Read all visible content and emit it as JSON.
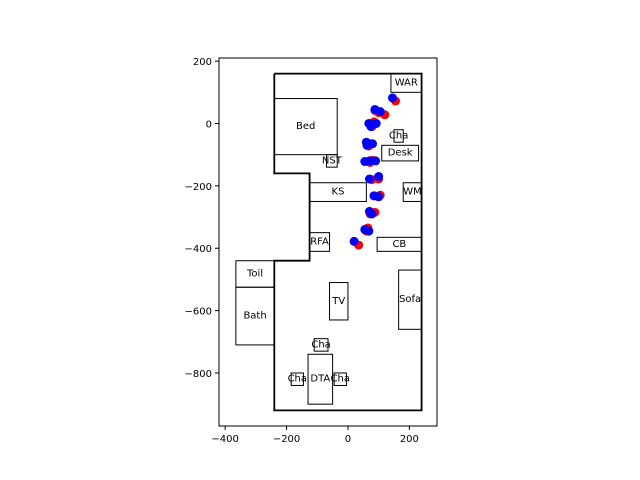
{
  "chart_data": {
    "type": "scatter",
    "title": "",
    "xlabel": "",
    "ylabel": "",
    "xlim": [
      -420,
      290
    ],
    "ylim": [
      -970,
      210
    ],
    "x_ticks": [
      -400,
      -200,
      0,
      200
    ],
    "y_ticks": [
      200,
      0,
      -200,
      -400,
      -600,
      -800
    ],
    "x_tick_labels": [
      "−400",
      "−200",
      "0",
      "200"
    ],
    "y_tick_labels": [
      "200",
      "0",
      "−200",
      "−400",
      "−600",
      "−800"
    ],
    "grid": false,
    "legend": "none",
    "floor_outline": [
      [
        -240,
        160
      ],
      [
        240,
        160
      ],
      [
        240,
        -920
      ],
      [
        -240,
        -920
      ],
      [
        -240,
        -440
      ],
      [
        -125,
        -440
      ],
      [
        -125,
        -160
      ],
      [
        -240,
        -160
      ],
      [
        -240,
        160
      ]
    ],
    "rooms": [
      {
        "label": "WAR",
        "x0": 140,
        "y0": 100,
        "x1": 240,
        "y1": 160
      },
      {
        "label": "Bed",
        "x0": -240,
        "y0": -100,
        "x1": -35,
        "y1": 80
      },
      {
        "label": "Cha",
        "x0": 150,
        "y0": -60,
        "x1": 180,
        "y1": -20
      },
      {
        "label": "Desk",
        "x0": 110,
        "y0": -120,
        "x1": 230,
        "y1": -70
      },
      {
        "label": "NST",
        "x0": -70,
        "y0": -140,
        "x1": -35,
        "y1": -100
      },
      {
        "label": "KS",
        "x0": -125,
        "y0": -250,
        "x1": 60,
        "y1": -190
      },
      {
        "label": "WM",
        "x0": 180,
        "y0": -250,
        "x1": 240,
        "y1": -190
      },
      {
        "label": "RFA",
        "x0": -125,
        "y0": -410,
        "x1": -60,
        "y1": -350
      },
      {
        "label": "CB",
        "x0": 95,
        "y0": -410,
        "x1": 240,
        "y1": -365
      },
      {
        "label": "Toil",
        "x0": -365,
        "y0": -525,
        "x1": -240,
        "y1": -440
      },
      {
        "label": "Bath",
        "x0": -365,
        "y0": -710,
        "x1": -240,
        "y1": -525
      },
      {
        "label": "TV",
        "x0": -60,
        "y0": -630,
        "x1": 0,
        "y1": -510
      },
      {
        "label": "Sofa",
        "x0": 165,
        "y0": -660,
        "x1": 240,
        "y1": -470
      },
      {
        "label": "Cha",
        "x0": -110,
        "y0": -730,
        "x1": -65,
        "y1": -690
      },
      {
        "label": "Cha",
        "x0": -185,
        "y0": -840,
        "x1": -145,
        "y1": -800
      },
      {
        "label": "DTA",
        "x0": -130,
        "y0": -900,
        "x1": -50,
        "y1": -740
      },
      {
        "label": "Cha",
        "x0": -45,
        "y0": -840,
        "x1": -5,
        "y1": -800
      }
    ],
    "series": [
      {
        "color": "#ff0000",
        "points": [
          [
            155,
            72
          ],
          [
            120,
            28
          ],
          [
            100,
            35
          ],
          [
            88,
            42
          ],
          [
            85,
            5
          ],
          [
            80,
            -5
          ],
          [
            78,
            -10
          ],
          [
            70,
            -65
          ],
          [
            68,
            -72
          ],
          [
            80,
            -118
          ],
          [
            72,
            -125
          ],
          [
            100,
            -178
          ],
          [
            78,
            -180
          ],
          [
            105,
            -230
          ],
          [
            85,
            -232
          ],
          [
            88,
            -285
          ],
          [
            72,
            -290
          ],
          [
            65,
            -335
          ],
          [
            60,
            -345
          ],
          [
            35,
            -390
          ]
        ]
      },
      {
        "color": "#0000ff",
        "points": [
          [
            145,
            82
          ],
          [
            105,
            38
          ],
          [
            88,
            45
          ],
          [
            92,
            0
          ],
          [
            68,
            0
          ],
          [
            75,
            -10
          ],
          [
            60,
            -60
          ],
          [
            62,
            -70
          ],
          [
            80,
            -65
          ],
          [
            90,
            -120
          ],
          [
            70,
            -120
          ],
          [
            55,
            -122
          ],
          [
            100,
            -170
          ],
          [
            70,
            -178
          ],
          [
            100,
            -235
          ],
          [
            85,
            -232
          ],
          [
            70,
            -282
          ],
          [
            78,
            -290
          ],
          [
            55,
            -340
          ],
          [
            68,
            -345
          ],
          [
            20,
            -378
          ]
        ]
      }
    ]
  }
}
